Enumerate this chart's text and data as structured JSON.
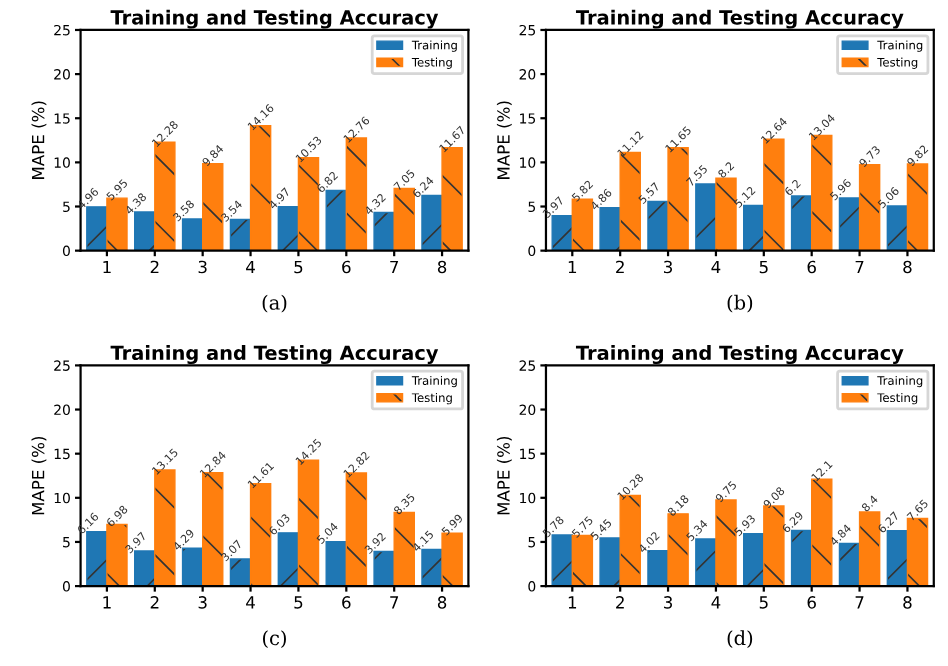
{
  "chart_data": [
    {
      "type": "bar",
      "title": "Training and Testing Accuracy",
      "ylabel": "MAPE (%)",
      "categories": [
        "1",
        "2",
        "3",
        "4",
        "5",
        "6",
        "7",
        "8"
      ],
      "ylim": [
        0,
        25
      ],
      "yticks": [
        0,
        5,
        10,
        15,
        20,
        25
      ],
      "legend": "top right",
      "data_labels": true,
      "grid": false,
      "annotations": [
        "(a)"
      ],
      "series": [
        {
          "name": "Training",
          "color": "#1f77b4",
          "values": [
            4.96,
            4.38,
            3.58,
            3.54,
            4.97,
            6.82,
            4.32,
            6.24
          ]
        },
        {
          "name": "Testing",
          "color": "#ff7f0e",
          "values": [
            5.95,
            12.28,
            9.84,
            14.16,
            10.53,
            12.76,
            7.05,
            11.67
          ]
        }
      ]
    },
    {
      "type": "bar",
      "title": "Training and Testing Accuracy",
      "ylabel": "MAPE (%)",
      "categories": [
        "1",
        "2",
        "3",
        "4",
        "5",
        "6",
        "7",
        "8"
      ],
      "ylim": [
        0,
        25
      ],
      "yticks": [
        0,
        5,
        10,
        15,
        20,
        25
      ],
      "legend": "top right",
      "data_labels": true,
      "grid": false,
      "annotations": [
        "(b)"
      ],
      "series": [
        {
          "name": "Training",
          "color": "#1f77b4",
          "values": [
            3.97,
            4.86,
            5.57,
            7.55,
            5.12,
            6.2,
            5.96,
            5.06
          ]
        },
        {
          "name": "Testing",
          "color": "#ff7f0e",
          "values": [
            5.82,
            11.12,
            11.65,
            8.2,
            12.64,
            13.04,
            9.73,
            9.82
          ]
        }
      ]
    },
    {
      "type": "bar",
      "title": "Training and Testing Accuracy",
      "ylabel": "MAPE (%)",
      "categories": [
        "1",
        "2",
        "3",
        "4",
        "5",
        "6",
        "7",
        "8"
      ],
      "ylim": [
        0,
        25
      ],
      "yticks": [
        0,
        5,
        10,
        15,
        20,
        25
      ],
      "legend": "top right",
      "data_labels": true,
      "grid": false,
      "annotations": [
        "(c)"
      ],
      "series": [
        {
          "name": "Training",
          "color": "#1f77b4",
          "values": [
            6.16,
            3.97,
            4.29,
            3.07,
            6.03,
            5.04,
            3.92,
            4.15
          ]
        },
        {
          "name": "Testing",
          "color": "#ff7f0e",
          "values": [
            6.98,
            13.15,
            12.84,
            11.61,
            14.25,
            12.82,
            8.35,
            5.99
          ]
        }
      ]
    },
    {
      "type": "bar",
      "title": "Training and Testing Accuracy",
      "ylabel": "MAPE (%)",
      "categories": [
        "1",
        "2",
        "3",
        "4",
        "5",
        "6",
        "7",
        "8"
      ],
      "ylim": [
        0,
        25
      ],
      "yticks": [
        0,
        5,
        10,
        15,
        20,
        25
      ],
      "legend": "top right",
      "data_labels": true,
      "grid": false,
      "annotations": [
        "(d)"
      ],
      "series": [
        {
          "name": "Training",
          "color": "#1f77b4",
          "values": [
            5.78,
            5.45,
            4.02,
            5.34,
            5.93,
            6.29,
            4.84,
            6.27
          ]
        },
        {
          "name": "Testing",
          "color": "#ff7f0e",
          "values": [
            5.75,
            10.28,
            8.18,
            9.75,
            9.08,
            12.1,
            8.4,
            7.65
          ]
        }
      ]
    }
  ]
}
